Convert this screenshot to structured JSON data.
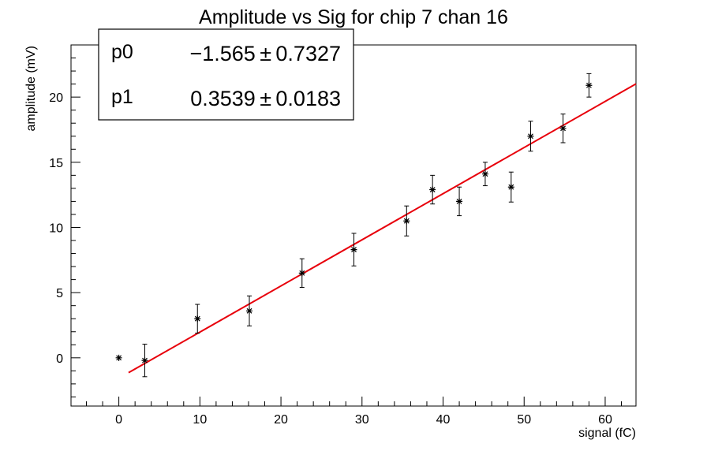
{
  "chart_data": {
    "type": "scatter",
    "title": "Amplitude vs Sig for chip 7 chan 16",
    "xlabel": "signal (fC)",
    "ylabel": "amplitude (mV)",
    "xlim": [
      -5.9,
      63.8
    ],
    "ylim": [
      -3.7,
      24.0
    ],
    "x_ticks": [
      0,
      10,
      20,
      30,
      40,
      50,
      60
    ],
    "y_ticks": [
      0,
      5,
      10,
      15,
      20
    ],
    "grid": false,
    "marker": "star",
    "points": [
      {
        "x": 0.0,
        "y": 0.0,
        "err": 0.0
      },
      {
        "x": 3.2,
        "y": -0.2,
        "err": 1.25
      },
      {
        "x": 9.7,
        "y": 3.0,
        "err": 1.1
      },
      {
        "x": 16.1,
        "y": 3.6,
        "err": 1.15
      },
      {
        "x": 22.6,
        "y": 6.5,
        "err": 1.1
      },
      {
        "x": 29.0,
        "y": 8.3,
        "err": 1.25
      },
      {
        "x": 35.5,
        "y": 10.5,
        "err": 1.15
      },
      {
        "x": 38.7,
        "y": 12.9,
        "err": 1.1
      },
      {
        "x": 42.0,
        "y": 12.0,
        "err": 1.1
      },
      {
        "x": 45.2,
        "y": 14.1,
        "err": 0.9
      },
      {
        "x": 48.4,
        "y": 13.1,
        "err": 1.15
      },
      {
        "x": 50.8,
        "y": 17.0,
        "err": 1.15
      },
      {
        "x": 54.8,
        "y": 17.6,
        "err": 1.1
      },
      {
        "x": 58.0,
        "y": 20.9,
        "err": 0.9
      }
    ],
    "fit": {
      "x_range": [
        1.2,
        63.8
      ],
      "p0": -1.565,
      "p1": 0.3539,
      "color": "#e8000b"
    },
    "stats_box": {
      "placement": "top-left",
      "rows": [
        {
          "name": "p0",
          "value": "−1.565 ± 0.7327"
        },
        {
          "name": "p1",
          "value": "0.3539 ± 0.0183"
        }
      ]
    }
  }
}
